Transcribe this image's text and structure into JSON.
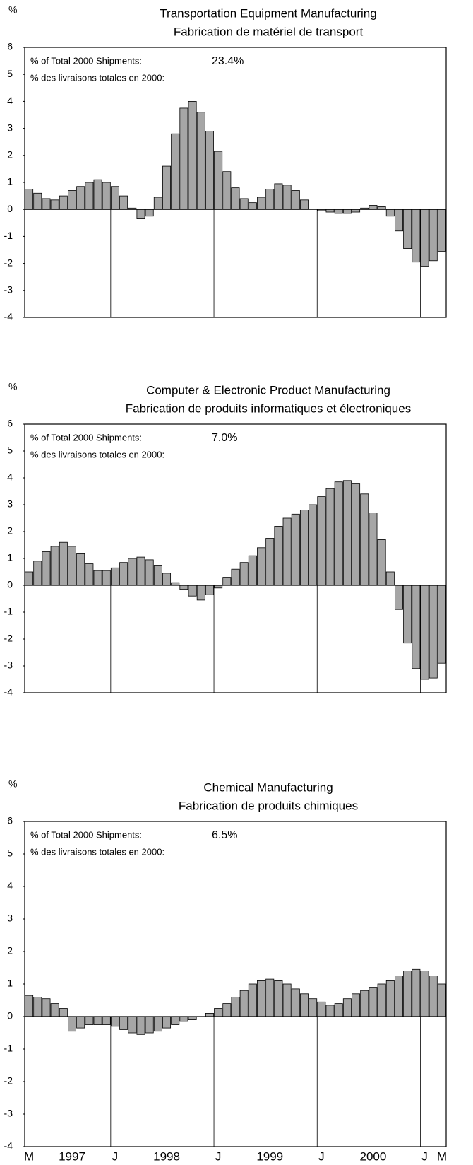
{
  "chart_data": [
    {
      "type": "bar",
      "ylabel": "%",
      "title": "Transportation Equipment Manufacturing",
      "subtitle": "Fabrication de matériel de transport",
      "annotation": {
        "label_en": "% of Total 2000 Shipments:",
        "label_fr": "% des livraisons totales en 2000:",
        "share": "23.4%"
      },
      "color": "#a6a6a6",
      "ylim": [
        -4,
        6
      ],
      "yticks": [
        -4,
        -3,
        -2,
        -1,
        0,
        1,
        2,
        3,
        4,
        5,
        6
      ],
      "values": [
        0.75,
        0.6,
        0.4,
        0.35,
        0.5,
        0.7,
        0.85,
        1.0,
        1.1,
        1.0,
        0.85,
        0.5,
        0.05,
        -0.35,
        -0.25,
        0.45,
        1.6,
        2.8,
        3.75,
        4.0,
        3.6,
        2.9,
        2.15,
        1.4,
        0.8,
        0.4,
        0.25,
        0.45,
        0.75,
        0.95,
        0.9,
        0.7,
        0.35,
        0,
        -0.05,
        -0.1,
        -0.15,
        -0.15,
        -0.1,
        0.05,
        0.15,
        0.1,
        -0.25,
        -0.8,
        -1.45,
        -1.95,
        -2.1,
        -1.9,
        -1.55
      ]
    },
    {
      "type": "bar",
      "ylabel": "%",
      "title": "Computer & Electronic Product Manufacturing",
      "subtitle": "Fabrication de produits informatiques et électroniques",
      "annotation": {
        "label_en": "% of Total 2000 Shipments:",
        "label_fr": "% des livraisons totales en 2000:",
        "share": "7.0%"
      },
      "color": "#a6a6a6",
      "ylim": [
        -4,
        6
      ],
      "yticks": [
        -4,
        -3,
        -2,
        -1,
        0,
        1,
        2,
        3,
        4,
        5,
        6
      ],
      "values": [
        0.5,
        0.9,
        1.25,
        1.45,
        1.6,
        1.45,
        1.2,
        0.8,
        0.55,
        0.55,
        0.65,
        0.85,
        1.0,
        1.05,
        0.95,
        0.75,
        0.45,
        0.1,
        -0.15,
        -0.4,
        -0.55,
        -0.35,
        -0.1,
        0.3,
        0.6,
        0.85,
        1.1,
        1.4,
        1.75,
        2.2,
        2.5,
        2.65,
        2.8,
        3.0,
        3.3,
        3.6,
        3.85,
        3.9,
        3.8,
        3.4,
        2.7,
        1.7,
        0.5,
        -0.9,
        -2.15,
        -3.1,
        -3.5,
        -3.45,
        -2.9
      ]
    },
    {
      "type": "bar",
      "ylabel": "%",
      "title": "Chemical Manufacturing",
      "subtitle": "Fabrication de produits chimiques",
      "annotation": {
        "label_en": "% of Total 2000 Shipments:",
        "label_fr": "% des livraisons totales en 2000:",
        "share": "6.5%"
      },
      "color": "#a6a6a6",
      "ylim": [
        -4,
        6
      ],
      "yticks": [
        -4,
        -3,
        -2,
        -1,
        0,
        1,
        2,
        3,
        4,
        5,
        6
      ],
      "categories": [
        "M",
        null,
        null,
        null,
        null,
        "1997",
        null,
        null,
        null,
        null,
        "J",
        null,
        null,
        null,
        null,
        null,
        "1998",
        null,
        null,
        null,
        null,
        null,
        "J",
        null,
        null,
        null,
        null,
        null,
        "1999",
        null,
        null,
        null,
        null,
        null,
        "J",
        null,
        null,
        null,
        null,
        null,
        "2000",
        null,
        null,
        null,
        null,
        null,
        "J",
        null,
        "M"
      ],
      "values": [
        0.65,
        0.6,
        0.55,
        0.4,
        0.25,
        -0.45,
        -0.35,
        -0.25,
        -0.25,
        -0.25,
        -0.3,
        -0.4,
        -0.5,
        -0.55,
        -0.5,
        -0.45,
        -0.35,
        -0.25,
        -0.15,
        -0.1,
        0,
        0.1,
        0.25,
        0.4,
        0.6,
        0.8,
        1.0,
        1.1,
        1.15,
        1.1,
        1.0,
        0.85,
        0.7,
        0.55,
        0.45,
        0.35,
        0.4,
        0.55,
        0.7,
        0.8,
        0.9,
        1.0,
        1.1,
        1.25,
        1.4,
        1.45,
        1.4,
        1.25,
        1.0
      ]
    }
  ]
}
